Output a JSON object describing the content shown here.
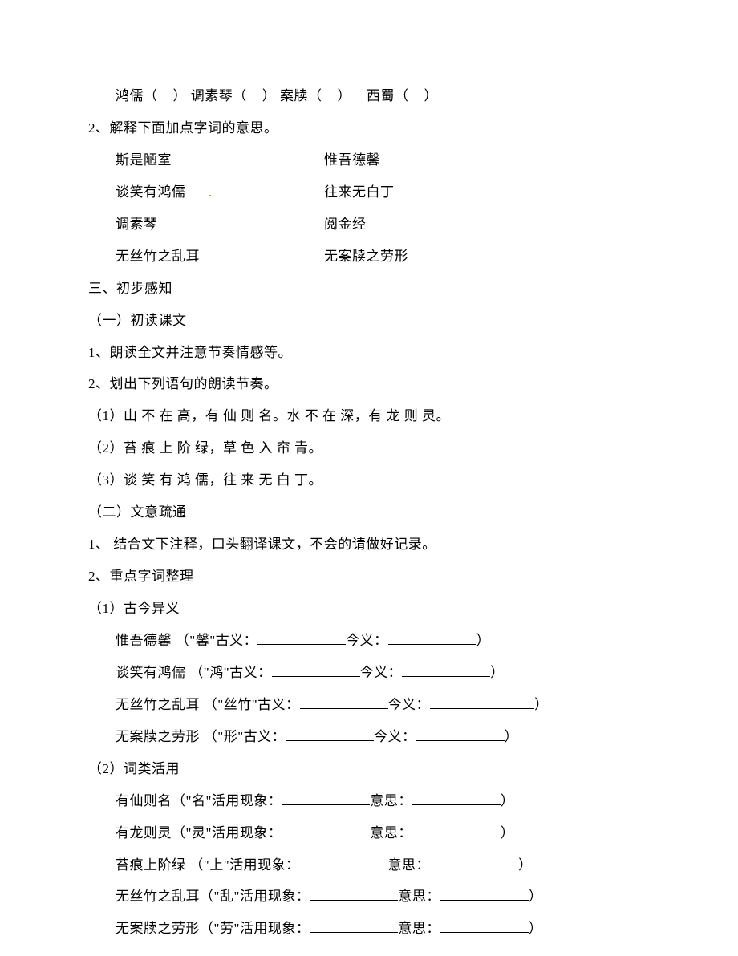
{
  "line1": {
    "word1": "鸿儒（",
    "paren_close": "）",
    "word2": "调素琴（",
    "word3": "案牍（",
    "word4": "西蜀（"
  },
  "q2": {
    "title": "2、解释下面加点字词的意思。",
    "rows": [
      {
        "left": "斯是陋室",
        "right": "惟吾德馨"
      },
      {
        "left": "谈笑有鸿儒",
        "right": "往来无白丁"
      },
      {
        "left": "调素琴",
        "right": "阅金经"
      },
      {
        "left": "无丝竹之乱耳",
        "right": "无案牍之劳形"
      }
    ],
    "dot": "."
  },
  "s3": {
    "title": "三、初步感知",
    "p1": "（一）初读课文",
    "l1": "1、朗读全文并注意节奏情感等。",
    "l2": "2、划出下列语句的朗读节奏。",
    "item1": "（1）山 不 在 高，有 仙 则 名。水 不 在 深，有 龙 则 灵。",
    "item2": "（2）苔 痕 上 阶 绿，草 色 入 帘 青。",
    "item3": "（3）谈 笑 有 鸿 儒，往 来 无 白 丁。",
    "p2": "（二）文意疏通",
    "l3": "1、 结合文下注释，口头翻译课文，不会的请做好记录。",
    "l4": "2、重点字词整理",
    "p3": "（1）古今异义",
    "gj1_a": "惟吾德馨   （\"馨\"古义：",
    "gj1_b": "今义：",
    "gj1_c": "）",
    "gj2_a": "谈笑有鸿儒   （\"鸿\"古义：",
    "gj2_b": "今义：",
    "gj2_c": "）",
    "gj3_a": "无丝竹之乱耳   （\"丝竹\"古义：",
    "gj3_b": "今义：",
    "gj3_c": "）",
    "gj4_a": "无案牍之劳形   （\"形\"古义：",
    "gj4_b": "今义：",
    "gj4_c": "）",
    "p4": "（2）词类活用",
    "hl1_a": "有仙则名（\"名\"活用现象：",
    "hl1_b": "意思：",
    "hl1_c": "）",
    "hl2_a": "有龙则灵（\"灵\"活用现象：",
    "hl2_b": "意思：",
    "hl2_c": "）",
    "hl3_a": "苔痕上阶绿   （\"上\"活用现象：",
    "hl3_b": "意思：",
    "hl3_c": "）",
    "hl4_a": "无丝竹之乱耳（\"乱\"活用现象：",
    "hl4_b": "意思：",
    "hl4_c": "）",
    "hl5_a": "无案牍之劳形（\"劳\"活用现象：",
    "hl5_b": "意思：",
    "hl5_c": "）"
  }
}
